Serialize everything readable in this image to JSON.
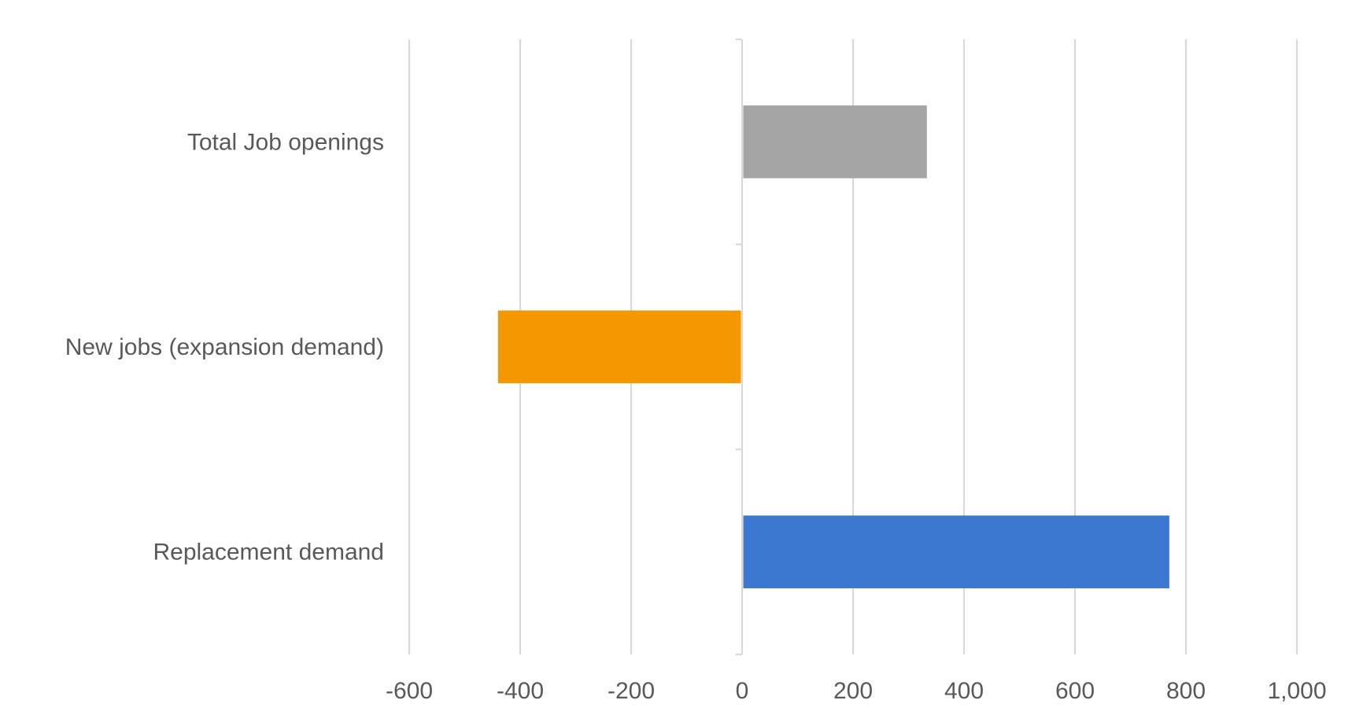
{
  "chart_data": {
    "type": "bar",
    "orientation": "horizontal",
    "categories": [
      "Replacement demand",
      "New jobs (expansion demand)",
      "Total Job openings"
    ],
    "values": [
      770,
      -440,
      333
    ],
    "colors": [
      "#3c78d0",
      "#f59700",
      "#a5a5a5"
    ],
    "title": "",
    "xlabel": "",
    "ylabel": "",
    "xlim": [
      -600,
      1000
    ],
    "xticks": [
      -600,
      -400,
      -200,
      0,
      200,
      400,
      600,
      800,
      1000
    ],
    "xtick_labels": [
      "-600",
      "-400",
      "-200",
      "0",
      "200",
      "400",
      "600",
      "800",
      "1,000"
    ],
    "grid": "vertical",
    "legend": "none"
  }
}
